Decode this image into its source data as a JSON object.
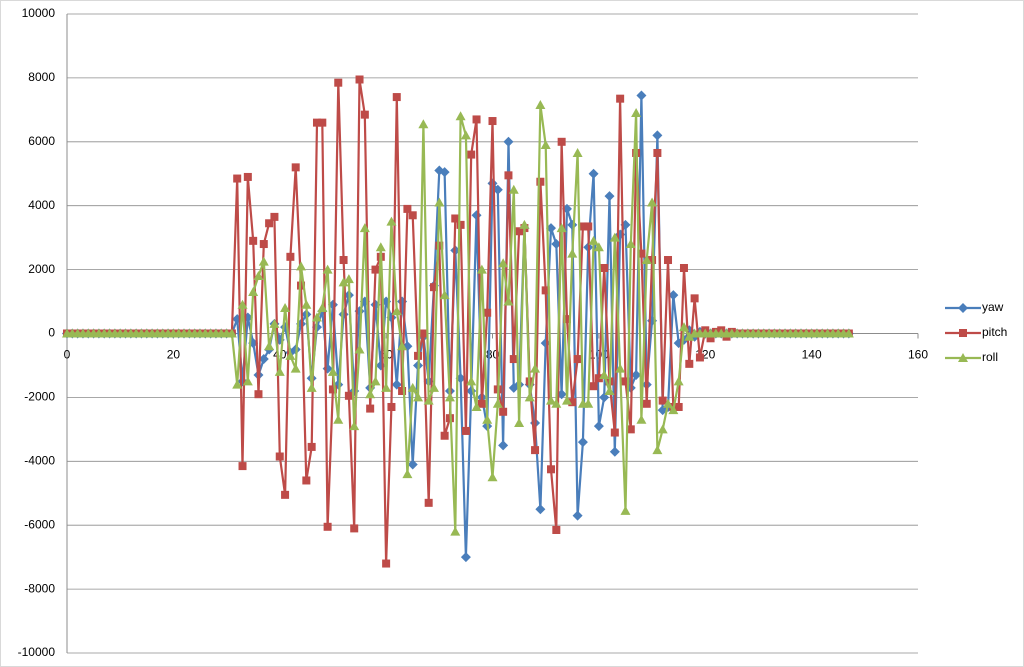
{
  "chart_data": {
    "type": "line",
    "x": [
      0,
      1,
      2,
      3,
      4,
      5,
      6,
      7,
      8,
      9,
      10,
      11,
      12,
      13,
      14,
      15,
      16,
      17,
      18,
      19,
      20,
      21,
      22,
      23,
      24,
      25,
      26,
      27,
      28,
      29,
      30,
      31,
      32,
      33,
      34,
      35,
      36,
      37,
      38,
      39,
      40,
      41,
      42,
      43,
      44,
      45,
      46,
      47,
      48,
      49,
      50,
      51,
      52,
      53,
      54,
      55,
      56,
      57,
      58,
      59,
      60,
      61,
      62,
      63,
      64,
      65,
      66,
      67,
      68,
      69,
      70,
      71,
      72,
      73,
      74,
      75,
      76,
      77,
      78,
      79,
      80,
      81,
      82,
      83,
      84,
      85,
      86,
      87,
      88,
      89,
      90,
      91,
      92,
      93,
      94,
      95,
      96,
      97,
      98,
      99,
      100,
      101,
      102,
      103,
      104,
      105,
      106,
      107,
      108,
      109,
      110,
      111,
      112,
      113,
      114,
      115,
      116,
      117,
      118,
      119,
      120,
      121,
      122,
      123,
      124,
      125,
      126,
      127,
      128,
      129,
      130,
      131,
      132,
      133,
      134,
      135,
      136,
      137,
      138,
      139,
      140,
      141,
      142,
      143,
      144,
      145,
      146,
      147
    ],
    "series": [
      {
        "name": "yaw",
        "color": "#4a7ebb",
        "marker": "diamond",
        "values": [
          0,
          0,
          0,
          0,
          0,
          0,
          0,
          0,
          0,
          0,
          0,
          0,
          0,
          0,
          0,
          0,
          0,
          0,
          0,
          0,
          0,
          0,
          0,
          0,
          0,
          0,
          0,
          0,
          0,
          0,
          0,
          0,
          450,
          -1500,
          500,
          -300,
          -1300,
          -800,
          -500,
          300,
          -200,
          200,
          -600,
          -500,
          300,
          600,
          -1400,
          200,
          700,
          -1100,
          900,
          -1600,
          600,
          1200,
          -1800,
          700,
          1000,
          -1700,
          900,
          -1000,
          1000,
          500,
          -1600,
          1000,
          -400,
          -4100,
          -1000,
          -100,
          -1500,
          1500,
          5100,
          5050,
          -1800,
          2600,
          -1400,
          -7000,
          -1800,
          3700,
          -2000,
          -2900,
          4700,
          4500,
          -3500,
          6000,
          -1700,
          -1600,
          3300,
          -1600,
          -2800,
          -5500,
          -300,
          3300,
          2800,
          -1900,
          3900,
          3400,
          -5700,
          -3400,
          2700,
          5000,
          -2900,
          -2000,
          4300,
          -3700,
          3100,
          3400,
          -1700,
          -1300,
          7450,
          -1600,
          400,
          6200,
          -2400,
          -2300,
          1200,
          -300,
          -200,
          100,
          -100,
          50,
          0,
          0,
          0,
          0,
          0,
          0,
          0,
          0,
          0,
          0,
          0,
          0,
          0,
          0,
          0,
          0,
          0,
          0,
          0,
          0,
          0,
          0,
          0,
          0,
          0,
          0,
          0,
          0
        ]
      },
      {
        "name": "pitch",
        "color": "#be4b48",
        "marker": "square",
        "values": [
          0,
          0,
          0,
          0,
          0,
          0,
          0,
          0,
          0,
          0,
          0,
          0,
          0,
          0,
          0,
          0,
          0,
          0,
          0,
          0,
          0,
          0,
          0,
          0,
          0,
          0,
          0,
          0,
          0,
          0,
          0,
          0,
          4850,
          -4150,
          4900,
          2900,
          -1900,
          2800,
          3450,
          3650,
          -3850,
          -5050,
          2400,
          5200,
          1500,
          -4600,
          -3550,
          6600,
          6600,
          -6050,
          -1750,
          7850,
          2300,
          -1950,
          -6100,
          7950,
          6850,
          -2350,
          2000,
          2400,
          -7200,
          -2300,
          7400,
          -1800,
          3900,
          3700,
          -700,
          0,
          -5300,
          1450,
          2750,
          -3200,
          -2650,
          3600,
          3400,
          -3050,
          5600,
          6700,
          -2200,
          650,
          6650,
          -1750,
          -2450,
          4950,
          -800,
          3200,
          3300,
          -1500,
          -3650,
          4750,
          1350,
          -4250,
          -6150,
          6000,
          450,
          -2150,
          -800,
          3350,
          3350,
          -1650,
          -1400,
          2050,
          -1500,
          -3100,
          7350,
          -1500,
          -3000,
          5650,
          2500,
          -2200,
          2300,
          5650,
          -2100,
          2300,
          -2300,
          -2300,
          2050,
          -950,
          1100,
          -750,
          100,
          -150,
          50,
          100,
          -100,
          50,
          0,
          0,
          0,
          0,
          0,
          0,
          0,
          0,
          0,
          0,
          0,
          0,
          0,
          0,
          0,
          0,
          0,
          0,
          0,
          0,
          0,
          0
        ]
      },
      {
        "name": "roll",
        "color": "#98b954",
        "marker": "triangle",
        "values": [
          0,
          0,
          0,
          0,
          0,
          0,
          0,
          0,
          0,
          0,
          0,
          0,
          0,
          0,
          0,
          0,
          0,
          0,
          0,
          0,
          0,
          0,
          0,
          0,
          0,
          0,
          0,
          0,
          0,
          0,
          0,
          0,
          -1600,
          900,
          -1500,
          1300,
          1800,
          2250,
          -400,
          300,
          -1200,
          800,
          -700,
          -1100,
          2100,
          900,
          -1700,
          500,
          800,
          2000,
          -1200,
          -2700,
          1600,
          1700,
          -2900,
          -500,
          3300,
          -1900,
          -1500,
          2700,
          -1700,
          3500,
          700,
          -400,
          -4400,
          -1700,
          -2000,
          6550,
          -2100,
          -1700,
          4100,
          1200,
          -2000,
          -6200,
          6800,
          6200,
          -1500,
          -2300,
          2000,
          -2700,
          -4500,
          -2200,
          2200,
          1000,
          4500,
          -2800,
          3400,
          -2000,
          -1100,
          7150,
          5900,
          -2100,
          -2200,
          3300,
          -2100,
          2500,
          5650,
          -2200,
          -2200,
          2900,
          2700,
          -1300,
          -1800,
          3000,
          -1100,
          -5550,
          2800,
          6900,
          -2700,
          2300,
          4100,
          -3650,
          -3000,
          -2200,
          -2400,
          -1500,
          200,
          -100,
          0,
          0,
          0,
          0,
          0,
          0,
          0,
          0,
          0,
          0,
          0,
          0,
          0,
          0,
          0,
          0,
          0,
          0,
          0,
          0,
          0,
          0,
          0,
          0,
          0,
          0,
          0,
          0,
          0,
          0
        ]
      }
    ],
    "xlim": [
      0,
      160
    ],
    "xticks": [
      0,
      20,
      40,
      60,
      80,
      100,
      120,
      140,
      160
    ],
    "ylim": [
      -10000,
      10000
    ],
    "yticks": [
      -10000,
      -8000,
      -6000,
      -4000,
      -2000,
      0,
      2000,
      4000,
      6000,
      8000,
      10000
    ],
    "grid": true,
    "legend": "right"
  }
}
